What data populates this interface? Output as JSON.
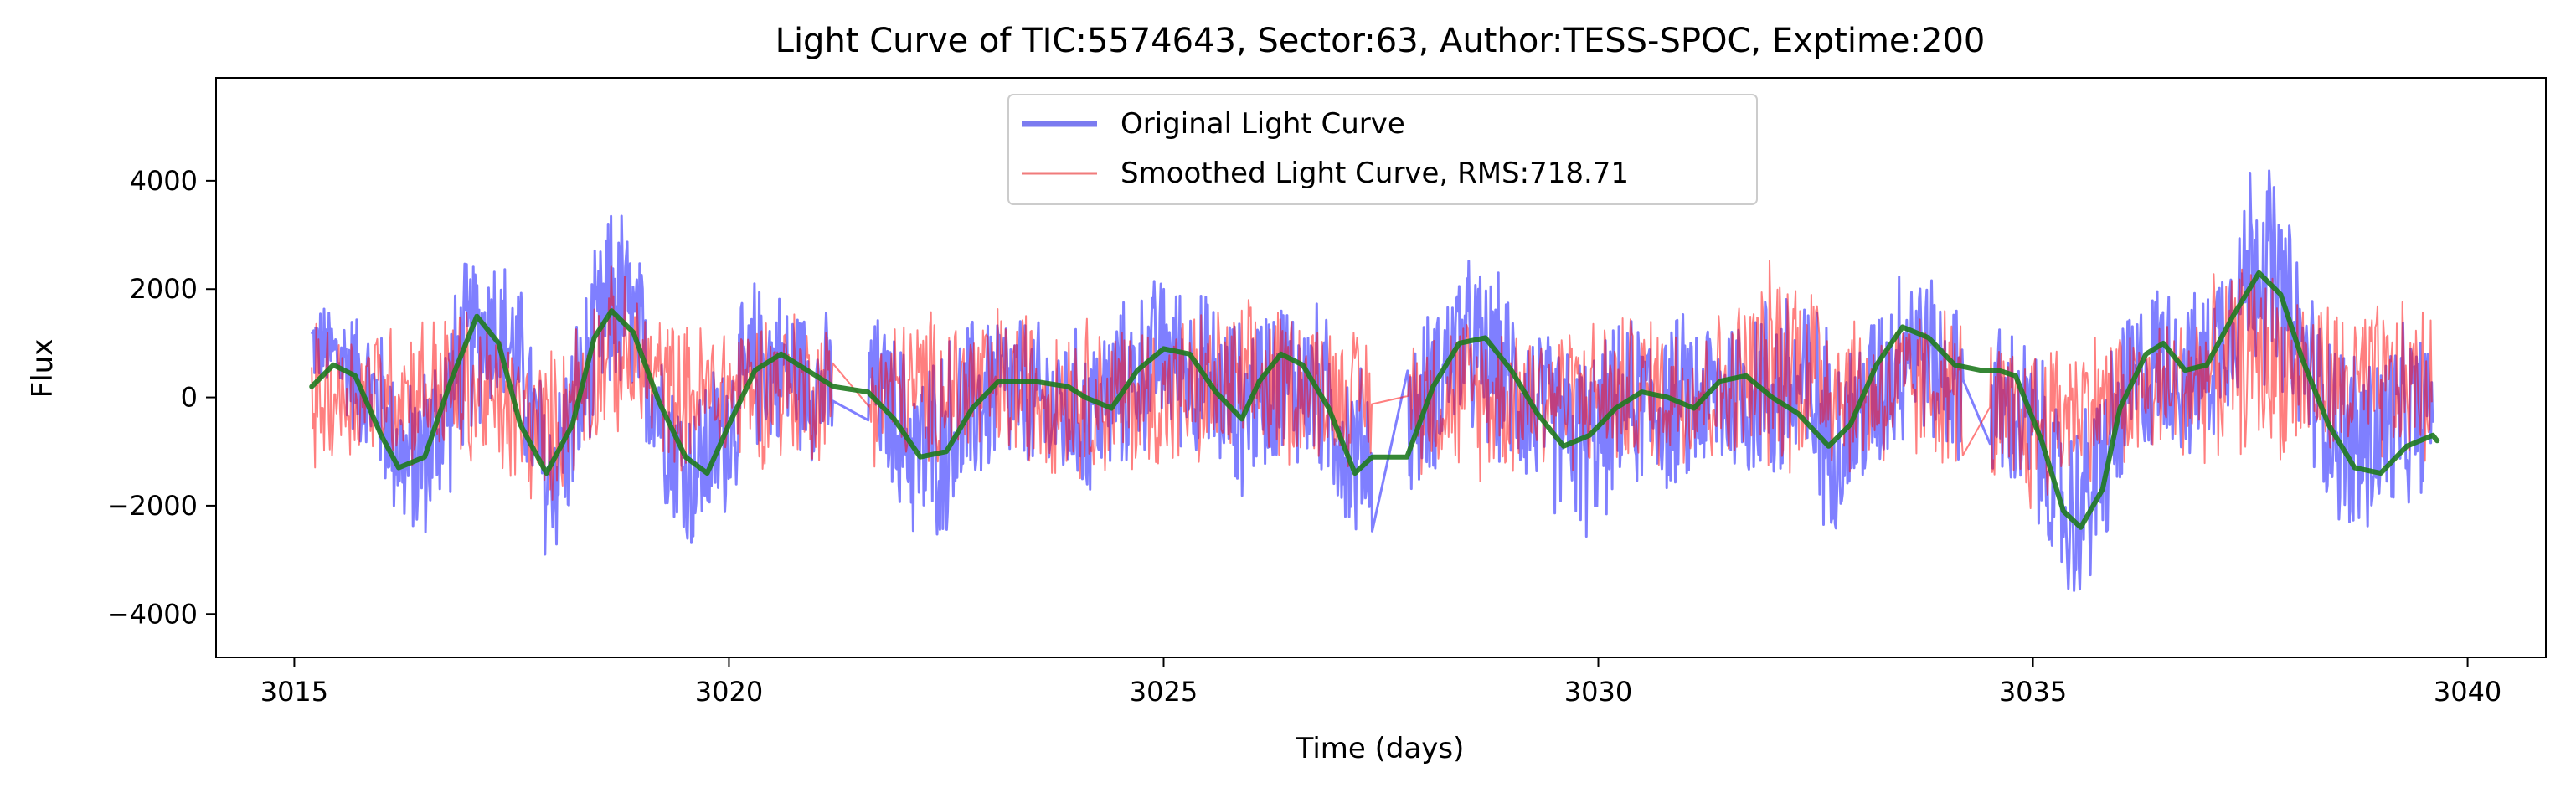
{
  "chart_data": {
    "type": "line",
    "title": "Light Curve of TIC:5574643, Sector:63, Author:TESS-SPOC, Exptime:200",
    "xlabel": "Time (days)",
    "ylabel": "Flux",
    "xlim": [
      3014.1,
      3040.9
    ],
    "ylim": [
      -4800,
      5900
    ],
    "xticks": [
      3015,
      3020,
      3025,
      3030,
      3035,
      3040
    ],
    "yticks": [
      -4000,
      -2000,
      0,
      2000,
      4000
    ],
    "grid": false,
    "legend": {
      "placement": "top-center",
      "entries": [
        {
          "label": "Original Light Curve",
          "color": "#7b7bf0"
        },
        {
          "label": "Smoothed Light Curve, RMS:718.71",
          "color": "#f07b7b"
        }
      ]
    },
    "gaps": [
      [
        3021.2,
        3021.6
      ],
      [
        3027.4,
        3027.8
      ],
      [
        3034.2,
        3034.5
      ]
    ],
    "series": [
      {
        "name": "Original Light Curve",
        "color": "#0000ff",
        "opacity": 0.5,
        "envelope_points": [
          [
            3015.2,
            200,
            1800
          ],
          [
            3015.6,
            -600,
            1900
          ],
          [
            3016.0,
            -1800,
            1400
          ],
          [
            3016.3,
            -3000,
            400
          ],
          [
            3016.6,
            -2800,
            1200
          ],
          [
            3017.0,
            -1000,
            2900
          ],
          [
            3017.3,
            -300,
            3100
          ],
          [
            3017.6,
            -1200,
            2300
          ],
          [
            3017.9,
            -3600,
            400
          ],
          [
            3018.2,
            -2500,
            1500
          ],
          [
            3018.5,
            -800,
            3000
          ],
          [
            3018.7,
            -300,
            4100
          ],
          [
            3018.9,
            -700,
            3200
          ],
          [
            3019.2,
            -1800,
            1600
          ],
          [
            3019.5,
            -3200,
            200
          ],
          [
            3019.9,
            -2600,
            1000
          ],
          [
            3020.3,
            -1200,
            2400
          ],
          [
            3020.7,
            -1000,
            2100
          ],
          [
            3021.1,
            -1500,
            1700
          ],
          [
            3021.7,
            -1400,
            1700
          ],
          [
            3022.2,
            -3100,
            900
          ],
          [
            3022.6,
            -2600,
            1500
          ],
          [
            3023.1,
            -1500,
            2000
          ],
          [
            3023.6,
            -1800,
            1500
          ],
          [
            3024.1,
            -2100,
            1400
          ],
          [
            3024.6,
            -1500,
            2000
          ],
          [
            3025.0,
            -800,
            2500
          ],
          [
            3025.5,
            -1500,
            2100
          ],
          [
            3025.9,
            -2000,
            1600
          ],
          [
            3026.3,
            -1400,
            2200
          ],
          [
            3026.8,
            -1700,
            1900
          ],
          [
            3027.2,
            -3000,
            700
          ],
          [
            3027.9,
            -2100,
            1400
          ],
          [
            3028.4,
            -800,
            2800
          ],
          [
            3028.9,
            -1500,
            2400
          ],
          [
            3029.4,
            -2200,
            1400
          ],
          [
            3029.9,
            -2900,
            1100
          ],
          [
            3030.3,
            -1800,
            1600
          ],
          [
            3030.8,
            -2000,
            1700
          ],
          [
            3031.3,
            -1700,
            1800
          ],
          [
            3031.8,
            -1800,
            2100
          ],
          [
            3032.3,
            -2300,
            2600
          ],
          [
            3032.8,
            -2700,
            1100
          ],
          [
            3033.2,
            -1800,
            2000
          ],
          [
            3033.6,
            -800,
            3200
          ],
          [
            3034.0,
            -1200,
            1900
          ],
          [
            3034.6,
            -2000,
            1600
          ],
          [
            3035.0,
            -2400,
            1300
          ],
          [
            3035.4,
            -4200,
            -400
          ],
          [
            3035.7,
            -3800,
            500
          ],
          [
            3036.1,
            -1800,
            1900
          ],
          [
            3036.5,
            -1000,
            2500
          ],
          [
            3036.9,
            -1500,
            2000
          ],
          [
            3037.3,
            -300,
            3600
          ],
          [
            3037.6,
            200,
            5400
          ],
          [
            3037.9,
            -500,
            3700
          ],
          [
            3038.3,
            -1800,
            1800
          ],
          [
            3038.7,
            -3200,
            1200
          ],
          [
            3039.1,
            -2600,
            1400
          ],
          [
            3039.6,
            -1800,
            1500
          ]
        ]
      },
      {
        "name": "Smoothed Light Curve, RMS:718.71",
        "color": "#ff0000",
        "opacity": 0.5,
        "envelope_points": [
          [
            3015.2,
            -1500,
            1500
          ],
          [
            3016.0,
            -1300,
            1600
          ],
          [
            3017.0,
            -1600,
            1900
          ],
          [
            3017.9,
            -2300,
            900
          ],
          [
            3018.6,
            -800,
            2600
          ],
          [
            3019.5,
            -1500,
            1500
          ],
          [
            3020.5,
            -1400,
            1900
          ],
          [
            3021.5,
            -1300,
            1500
          ],
          [
            3022.4,
            -1500,
            1800
          ],
          [
            3023.5,
            -1500,
            1900
          ],
          [
            3024.5,
            -1700,
            1600
          ],
          [
            3025.5,
            -1600,
            1800
          ],
          [
            3026.5,
            -1400,
            2000
          ],
          [
            3027.5,
            -1300,
            1200
          ],
          [
            3028.5,
            -1700,
            1800
          ],
          [
            3029.5,
            -1500,
            1600
          ],
          [
            3030.5,
            -1500,
            1700
          ],
          [
            3031.5,
            -1500,
            1800
          ],
          [
            3032.2,
            -1600,
            3200
          ],
          [
            3033.0,
            -1600,
            1700
          ],
          [
            3034.0,
            -1400,
            1900
          ],
          [
            3034.8,
            -2600,
            1200
          ],
          [
            3035.5,
            -1700,
            1400
          ],
          [
            3036.5,
            -1400,
            1600
          ],
          [
            3037.5,
            -1200,
            2800
          ],
          [
            3038.5,
            -1500,
            1900
          ],
          [
            3039.6,
            -1500,
            1900
          ]
        ]
      },
      {
        "name": "",
        "color": "#1f7a1f",
        "opacity": 0.9,
        "points": [
          [
            3015.2,
            200
          ],
          [
            3015.45,
            600
          ],
          [
            3015.7,
            400
          ],
          [
            3016.0,
            -700
          ],
          [
            3016.2,
            -1300
          ],
          [
            3016.5,
            -1100
          ],
          [
            3016.8,
            300
          ],
          [
            3017.1,
            1500
          ],
          [
            3017.35,
            1000
          ],
          [
            3017.6,
            -500
          ],
          [
            3017.9,
            -1400
          ],
          [
            3018.2,
            -500
          ],
          [
            3018.45,
            1100
          ],
          [
            3018.65,
            1600
          ],
          [
            3018.9,
            1200
          ],
          [
            3019.2,
            -100
          ],
          [
            3019.5,
            -1100
          ],
          [
            3019.75,
            -1400
          ],
          [
            3020.0,
            -500
          ],
          [
            3020.3,
            500
          ],
          [
            3020.6,
            800
          ],
          [
            3020.9,
            500
          ],
          [
            3021.2,
            200
          ],
          [
            3021.6,
            100
          ],
          [
            3021.9,
            -400
          ],
          [
            3022.2,
            -1100
          ],
          [
            3022.5,
            -1000
          ],
          [
            3022.8,
            -200
          ],
          [
            3023.1,
            300
          ],
          [
            3023.5,
            300
          ],
          [
            3023.9,
            200
          ],
          [
            3024.1,
            0
          ],
          [
            3024.4,
            -200
          ],
          [
            3024.7,
            500
          ],
          [
            3025.0,
            900
          ],
          [
            3025.3,
            800
          ],
          [
            3025.6,
            100
          ],
          [
            3025.9,
            -400
          ],
          [
            3026.1,
            300
          ],
          [
            3026.35,
            800
          ],
          [
            3026.6,
            600
          ],
          [
            3026.9,
            -200
          ],
          [
            3027.2,
            -1400
          ],
          [
            3027.4,
            -1100
          ],
          [
            3027.8,
            -1100
          ],
          [
            3028.1,
            200
          ],
          [
            3028.4,
            1000
          ],
          [
            3028.7,
            1100
          ],
          [
            3029.0,
            500
          ],
          [
            3029.3,
            -300
          ],
          [
            3029.6,
            -900
          ],
          [
            3029.9,
            -700
          ],
          [
            3030.2,
            -200
          ],
          [
            3030.5,
            100
          ],
          [
            3030.8,
            0
          ],
          [
            3031.1,
            -200
          ],
          [
            3031.4,
            300
          ],
          [
            3031.7,
            400
          ],
          [
            3032.0,
            0
          ],
          [
            3032.3,
            -300
          ],
          [
            3032.65,
            -900
          ],
          [
            3032.9,
            -500
          ],
          [
            3033.2,
            600
          ],
          [
            3033.5,
            1300
          ],
          [
            3033.8,
            1100
          ],
          [
            3034.1,
            600
          ],
          [
            3034.4,
            500
          ],
          [
            3034.6,
            500
          ],
          [
            3034.8,
            400
          ],
          [
            3035.1,
            -800
          ],
          [
            3035.35,
            -2100
          ],
          [
            3035.55,
            -2400
          ],
          [
            3035.8,
            -1700
          ],
          [
            3036.0,
            -200
          ],
          [
            3036.3,
            800
          ],
          [
            3036.5,
            1000
          ],
          [
            3036.75,
            500
          ],
          [
            3037.0,
            600
          ],
          [
            3037.3,
            1500
          ],
          [
            3037.6,
            2300
          ],
          [
            3037.85,
            1900
          ],
          [
            3038.1,
            700
          ],
          [
            3038.4,
            -500
          ],
          [
            3038.7,
            -1300
          ],
          [
            3039.0,
            -1400
          ],
          [
            3039.3,
            -900
          ],
          [
            3039.6,
            -700
          ],
          [
            3039.65,
            -800
          ]
        ]
      }
    ]
  }
}
